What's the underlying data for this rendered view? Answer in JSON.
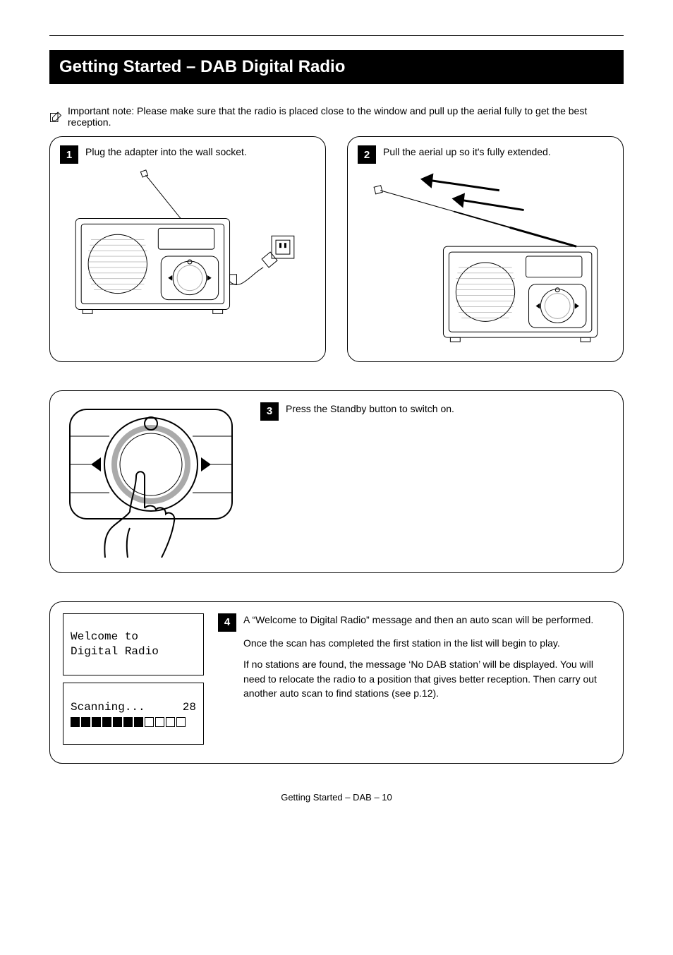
{
  "header_band": "Getting Started – DAB Digital Radio",
  "intro_note": "Important note: Please make sure that the radio is placed close to the window and pull up the aerial fully to get the best reception.",
  "steps": {
    "s1": {
      "num": "1",
      "text": "Plug the adapter into the wall socket."
    },
    "s2": {
      "num": "2",
      "text": "Pull the aerial up so it's fully extended."
    },
    "s3": {
      "num": "3",
      "text": "Press the Standby button to switch on."
    },
    "s4": {
      "num": "4",
      "paragraphs": [
        "A “Welcome to Digital Radio” message and then an auto scan will be performed.",
        "Once the scan has completed the first station in the list will begin to play.",
        "If no stations are found, the message ‘No DAB station’ will be displayed. You will need to relocate the radio to a position that gives better reception. Then carry out another auto scan to find stations (see p.12)."
      ]
    }
  },
  "lcd1": {
    "line1": "Welcome to",
    "line2": "Digital Radio"
  },
  "lcd2": {
    "line1": "Scanning...",
    "filled_bars": 7,
    "total_bars": 11,
    "count": "28"
  },
  "footer": "Getting Started – DAB – 10",
  "icons": {
    "note": "pencil-note-icon",
    "left": "◀",
    "right": "▶"
  },
  "colors": {
    "fg": "#000000",
    "bg": "#ffffff",
    "panel_border": "#000000"
  }
}
